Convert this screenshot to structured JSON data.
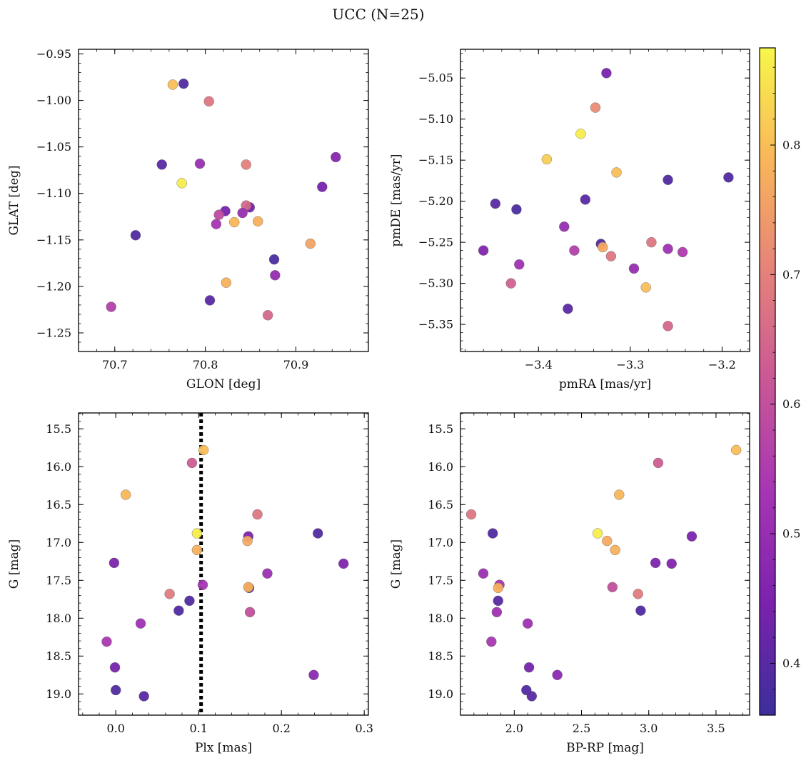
{
  "title": "UCC (N=25)",
  "colorbar": {
    "vmin": 0.36,
    "vmax": 0.875,
    "ticks": [
      "0.4",
      "0.5",
      "0.6",
      "0.7",
      "0.8"
    ],
    "colormap": "plasma",
    "colormap_stops": [
      "#3b2f9b",
      "#7b22ad",
      "#a635b4",
      "#c95796",
      "#e5827a",
      "#f9b65a",
      "#f7f74a"
    ]
  },
  "chart_data": [
    {
      "type": "scatter",
      "xlabel": "GLON [deg]",
      "ylabel": "GLAT [deg]",
      "xlim": [
        70.66,
        70.98
      ],
      "ylim": [
        -1.27,
        -0.945
      ],
      "xticks": [
        "70.7",
        "70.8",
        "70.9"
      ],
      "yticks": [
        "−0.95",
        "−1.00",
        "−1.05",
        "−1.10",
        "−1.15",
        "−1.20",
        "−1.25"
      ],
      "x": [
        70.776,
        70.764,
        70.804,
        70.752,
        70.794,
        70.845,
        70.944,
        70.774,
        70.929,
        70.822,
        70.815,
        70.849,
        70.845,
        70.841,
        70.812,
        70.832,
        70.858,
        70.723,
        70.916,
        70.876,
        70.877,
        70.823,
        70.805,
        70.869,
        70.696
      ],
      "y": [
        -0.982,
        -0.983,
        -1.001,
        -1.069,
        -1.068,
        -1.069,
        -1.061,
        -1.089,
        -1.093,
        -1.119,
        -1.123,
        -1.115,
        -1.113,
        -1.121,
        -1.133,
        -1.131,
        -1.13,
        -1.145,
        -1.154,
        -1.171,
        -1.188,
        -1.196,
        -1.215,
        -1.231,
        -1.222
      ],
      "color_values": [
        0.39,
        0.8,
        0.68,
        0.4,
        0.51,
        0.7,
        0.47,
        0.86,
        0.44,
        0.44,
        0.59,
        0.44,
        0.65,
        0.5,
        0.53,
        0.79,
        0.78,
        0.39,
        0.76,
        0.38,
        0.5,
        0.78,
        0.4,
        0.65,
        0.56
      ]
    },
    {
      "type": "scatter",
      "xlabel": "pmRA [mas/yr]",
      "ylabel": "pmDE [mas/yr]",
      "xlim": [
        -3.485,
        -3.17
      ],
      "ylim": [
        -5.383,
        -5.015
      ],
      "xticks": [
        "−3.4",
        "−3.3",
        "−3.2"
      ],
      "yticks": [
        "−5.05",
        "−5.10",
        "−5.15",
        "−5.20",
        "−5.25",
        "−5.30",
        "−5.35"
      ],
      "x": [
        -3.326,
        -3.338,
        -3.354,
        -3.391,
        -3.315,
        -3.259,
        -3.193,
        -3.349,
        -3.447,
        -3.424,
        -3.372,
        -3.332,
        -3.46,
        -3.361,
        -3.33,
        -3.277,
        -3.259,
        -3.243,
        -3.321,
        -3.421,
        -3.296,
        -3.43,
        -3.283,
        -3.368,
        -3.259
      ],
      "y": [
        -5.044,
        -5.086,
        -5.118,
        -5.149,
        -5.165,
        -5.174,
        -5.171,
        -5.198,
        -5.203,
        -5.21,
        -5.231,
        -5.252,
        -5.26,
        -5.26,
        -5.256,
        -5.25,
        -5.258,
        -5.262,
        -5.267,
        -5.277,
        -5.282,
        -5.3,
        -5.305,
        -5.331,
        -5.352
      ],
      "color_values": [
        0.44,
        0.72,
        0.86,
        0.82,
        0.8,
        0.39,
        0.39,
        0.4,
        0.4,
        0.38,
        0.5,
        0.39,
        0.46,
        0.56,
        0.77,
        0.68,
        0.52,
        0.55,
        0.68,
        0.52,
        0.5,
        0.64,
        0.8,
        0.4,
        0.65
      ]
    },
    {
      "type": "scatter",
      "xlabel": "Plx [mas]",
      "ylabel": "G [mag]",
      "xlim": [
        -0.045,
        0.305
      ],
      "ylim": [
        19.28,
        15.29
      ],
      "xticks": [
        "0.0",
        "0.1",
        "0.2",
        "0.3"
      ],
      "yticks": [
        "15.5",
        "16.0",
        "16.5",
        "17.0",
        "17.5",
        "18.0",
        "18.5",
        "19.0"
      ],
      "vline": {
        "x": 0.103,
        "style": "dotted",
        "color": "#000000"
      },
      "x": [
        0.106,
        0.092,
        0.012,
        0.171,
        0.098,
        0.244,
        0.16,
        0.159,
        0.098,
        -0.002,
        0.275,
        0.183,
        0.105,
        0.161,
        0.16,
        0.065,
        0.162,
        0.089,
        0.076,
        0.03,
        -0.011,
        -0.001,
        0.239,
        0.0,
        0.034
      ],
      "y": [
        15.78,
        15.95,
        16.37,
        16.63,
        16.88,
        16.88,
        16.92,
        16.98,
        17.1,
        17.27,
        17.28,
        17.41,
        17.56,
        17.6,
        17.59,
        17.68,
        17.92,
        17.77,
        17.9,
        18.07,
        18.31,
        18.65,
        18.75,
        18.95,
        19.03
      ],
      "color_values": [
        0.8,
        0.63,
        0.79,
        0.68,
        0.86,
        0.39,
        0.45,
        0.77,
        0.78,
        0.45,
        0.46,
        0.51,
        0.53,
        0.4,
        0.78,
        0.69,
        0.6,
        0.39,
        0.39,
        0.52,
        0.54,
        0.44,
        0.48,
        0.39,
        0.4
      ]
    },
    {
      "type": "scatter",
      "xlabel": "BP-RP [mag]",
      "ylabel": "G [mag]",
      "xlim": [
        1.6,
        3.75
      ],
      "ylim": [
        19.28,
        15.29
      ],
      "xticks": [
        "2.0",
        "2.5",
        "3.0",
        "3.5"
      ],
      "yticks": [
        "15.5",
        "16.0",
        "16.5",
        "17.0",
        "17.5",
        "18.0",
        "18.5",
        "19.0"
      ],
      "x": [
        3.65,
        3.07,
        2.78,
        1.68,
        1.84,
        2.62,
        3.32,
        2.69,
        2.75,
        3.05,
        3.17,
        1.77,
        1.89,
        1.88,
        2.73,
        2.92,
        1.87,
        1.88,
        2.94,
        2.1,
        1.83,
        2.11,
        2.32,
        2.09,
        2.13
      ],
      "y": [
        15.78,
        15.95,
        16.37,
        16.63,
        16.88,
        16.88,
        16.92,
        16.98,
        17.1,
        17.27,
        17.28,
        17.41,
        17.56,
        17.6,
        17.59,
        17.68,
        17.92,
        17.77,
        17.9,
        18.07,
        18.31,
        18.65,
        18.75,
        18.95,
        19.03
      ],
      "color_values": [
        0.8,
        0.63,
        0.79,
        0.68,
        0.39,
        0.86,
        0.45,
        0.77,
        0.78,
        0.45,
        0.46,
        0.51,
        0.53,
        0.78,
        0.6,
        0.69,
        0.52,
        0.4,
        0.39,
        0.52,
        0.54,
        0.44,
        0.48,
        0.39,
        0.4
      ]
    }
  ]
}
